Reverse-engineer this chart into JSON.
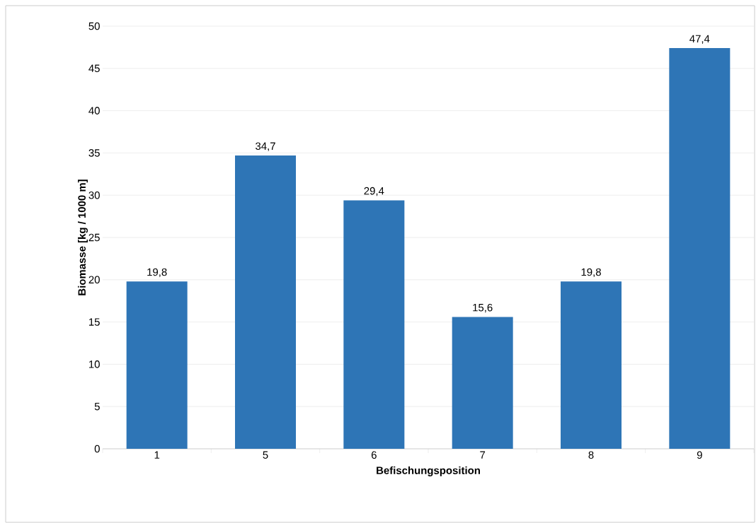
{
  "chart_data": {
    "type": "bar",
    "xlabel": "Befischungsposition",
    "ylabel": "Biomasse [kg / 1000 m]",
    "categories": [
      "1",
      "5",
      "6",
      "7",
      "8",
      "9"
    ],
    "values": [
      19.8,
      34.7,
      29.4,
      15.6,
      19.8,
      47.4
    ],
    "value_labels": [
      "19,8",
      "34,7",
      "29,4",
      "15,6",
      "19,8",
      "47,4"
    ],
    "color": "#2e75b6",
    "ylim": [
      0,
      50
    ],
    "yticks": [
      0,
      5,
      10,
      15,
      20,
      25,
      30,
      35,
      40,
      45,
      50
    ],
    "grid": "y"
  }
}
